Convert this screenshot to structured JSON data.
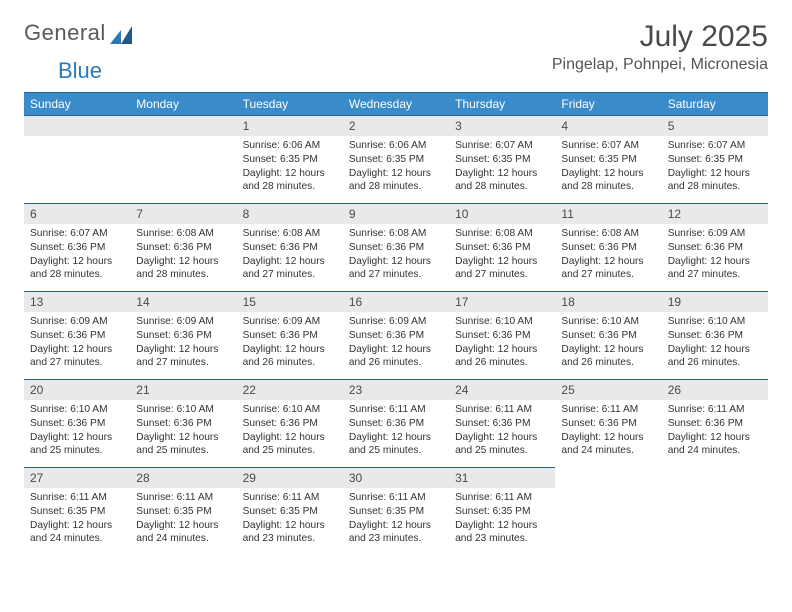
{
  "logo": {
    "part1": "General",
    "part2": "Blue"
  },
  "header": {
    "month_title": "July 2025",
    "location": "Pingelap, Pohnpei, Micronesia"
  },
  "colors": {
    "header_bg": "#3a8bc9",
    "header_border": "#2a6496",
    "daynum_bg": "#e7e9eb",
    "text": "#333333"
  },
  "weekdays": [
    "Sunday",
    "Monday",
    "Tuesday",
    "Wednesday",
    "Thursday",
    "Friday",
    "Saturday"
  ],
  "weeks": [
    [
      {
        "n": "",
        "sr": "",
        "ss": "",
        "dl": ""
      },
      {
        "n": "",
        "sr": "",
        "ss": "",
        "dl": ""
      },
      {
        "n": "1",
        "sr": "Sunrise: 6:06 AM",
        "ss": "Sunset: 6:35 PM",
        "dl": "Daylight: 12 hours and 28 minutes."
      },
      {
        "n": "2",
        "sr": "Sunrise: 6:06 AM",
        "ss": "Sunset: 6:35 PM",
        "dl": "Daylight: 12 hours and 28 minutes."
      },
      {
        "n": "3",
        "sr": "Sunrise: 6:07 AM",
        "ss": "Sunset: 6:35 PM",
        "dl": "Daylight: 12 hours and 28 minutes."
      },
      {
        "n": "4",
        "sr": "Sunrise: 6:07 AM",
        "ss": "Sunset: 6:35 PM",
        "dl": "Daylight: 12 hours and 28 minutes."
      },
      {
        "n": "5",
        "sr": "Sunrise: 6:07 AM",
        "ss": "Sunset: 6:35 PM",
        "dl": "Daylight: 12 hours and 28 minutes."
      }
    ],
    [
      {
        "n": "6",
        "sr": "Sunrise: 6:07 AM",
        "ss": "Sunset: 6:36 PM",
        "dl": "Daylight: 12 hours and 28 minutes."
      },
      {
        "n": "7",
        "sr": "Sunrise: 6:08 AM",
        "ss": "Sunset: 6:36 PM",
        "dl": "Daylight: 12 hours and 28 minutes."
      },
      {
        "n": "8",
        "sr": "Sunrise: 6:08 AM",
        "ss": "Sunset: 6:36 PM",
        "dl": "Daylight: 12 hours and 27 minutes."
      },
      {
        "n": "9",
        "sr": "Sunrise: 6:08 AM",
        "ss": "Sunset: 6:36 PM",
        "dl": "Daylight: 12 hours and 27 minutes."
      },
      {
        "n": "10",
        "sr": "Sunrise: 6:08 AM",
        "ss": "Sunset: 6:36 PM",
        "dl": "Daylight: 12 hours and 27 minutes."
      },
      {
        "n": "11",
        "sr": "Sunrise: 6:08 AM",
        "ss": "Sunset: 6:36 PM",
        "dl": "Daylight: 12 hours and 27 minutes."
      },
      {
        "n": "12",
        "sr": "Sunrise: 6:09 AM",
        "ss": "Sunset: 6:36 PM",
        "dl": "Daylight: 12 hours and 27 minutes."
      }
    ],
    [
      {
        "n": "13",
        "sr": "Sunrise: 6:09 AM",
        "ss": "Sunset: 6:36 PM",
        "dl": "Daylight: 12 hours and 27 minutes."
      },
      {
        "n": "14",
        "sr": "Sunrise: 6:09 AM",
        "ss": "Sunset: 6:36 PM",
        "dl": "Daylight: 12 hours and 27 minutes."
      },
      {
        "n": "15",
        "sr": "Sunrise: 6:09 AM",
        "ss": "Sunset: 6:36 PM",
        "dl": "Daylight: 12 hours and 26 minutes."
      },
      {
        "n": "16",
        "sr": "Sunrise: 6:09 AM",
        "ss": "Sunset: 6:36 PM",
        "dl": "Daylight: 12 hours and 26 minutes."
      },
      {
        "n": "17",
        "sr": "Sunrise: 6:10 AM",
        "ss": "Sunset: 6:36 PM",
        "dl": "Daylight: 12 hours and 26 minutes."
      },
      {
        "n": "18",
        "sr": "Sunrise: 6:10 AM",
        "ss": "Sunset: 6:36 PM",
        "dl": "Daylight: 12 hours and 26 minutes."
      },
      {
        "n": "19",
        "sr": "Sunrise: 6:10 AM",
        "ss": "Sunset: 6:36 PM",
        "dl": "Daylight: 12 hours and 26 minutes."
      }
    ],
    [
      {
        "n": "20",
        "sr": "Sunrise: 6:10 AM",
        "ss": "Sunset: 6:36 PM",
        "dl": "Daylight: 12 hours and 25 minutes."
      },
      {
        "n": "21",
        "sr": "Sunrise: 6:10 AM",
        "ss": "Sunset: 6:36 PM",
        "dl": "Daylight: 12 hours and 25 minutes."
      },
      {
        "n": "22",
        "sr": "Sunrise: 6:10 AM",
        "ss": "Sunset: 6:36 PM",
        "dl": "Daylight: 12 hours and 25 minutes."
      },
      {
        "n": "23",
        "sr": "Sunrise: 6:11 AM",
        "ss": "Sunset: 6:36 PM",
        "dl": "Daylight: 12 hours and 25 minutes."
      },
      {
        "n": "24",
        "sr": "Sunrise: 6:11 AM",
        "ss": "Sunset: 6:36 PM",
        "dl": "Daylight: 12 hours and 25 minutes."
      },
      {
        "n": "25",
        "sr": "Sunrise: 6:11 AM",
        "ss": "Sunset: 6:36 PM",
        "dl": "Daylight: 12 hours and 24 minutes."
      },
      {
        "n": "26",
        "sr": "Sunrise: 6:11 AM",
        "ss": "Sunset: 6:36 PM",
        "dl": "Daylight: 12 hours and 24 minutes."
      }
    ],
    [
      {
        "n": "27",
        "sr": "Sunrise: 6:11 AM",
        "ss": "Sunset: 6:35 PM",
        "dl": "Daylight: 12 hours and 24 minutes."
      },
      {
        "n": "28",
        "sr": "Sunrise: 6:11 AM",
        "ss": "Sunset: 6:35 PM",
        "dl": "Daylight: 12 hours and 24 minutes."
      },
      {
        "n": "29",
        "sr": "Sunrise: 6:11 AM",
        "ss": "Sunset: 6:35 PM",
        "dl": "Daylight: 12 hours and 23 minutes."
      },
      {
        "n": "30",
        "sr": "Sunrise: 6:11 AM",
        "ss": "Sunset: 6:35 PM",
        "dl": "Daylight: 12 hours and 23 minutes."
      },
      {
        "n": "31",
        "sr": "Sunrise: 6:11 AM",
        "ss": "Sunset: 6:35 PM",
        "dl": "Daylight: 12 hours and 23 minutes."
      },
      {
        "n": "",
        "sr": "",
        "ss": "",
        "dl": ""
      },
      {
        "n": "",
        "sr": "",
        "ss": "",
        "dl": ""
      }
    ]
  ]
}
